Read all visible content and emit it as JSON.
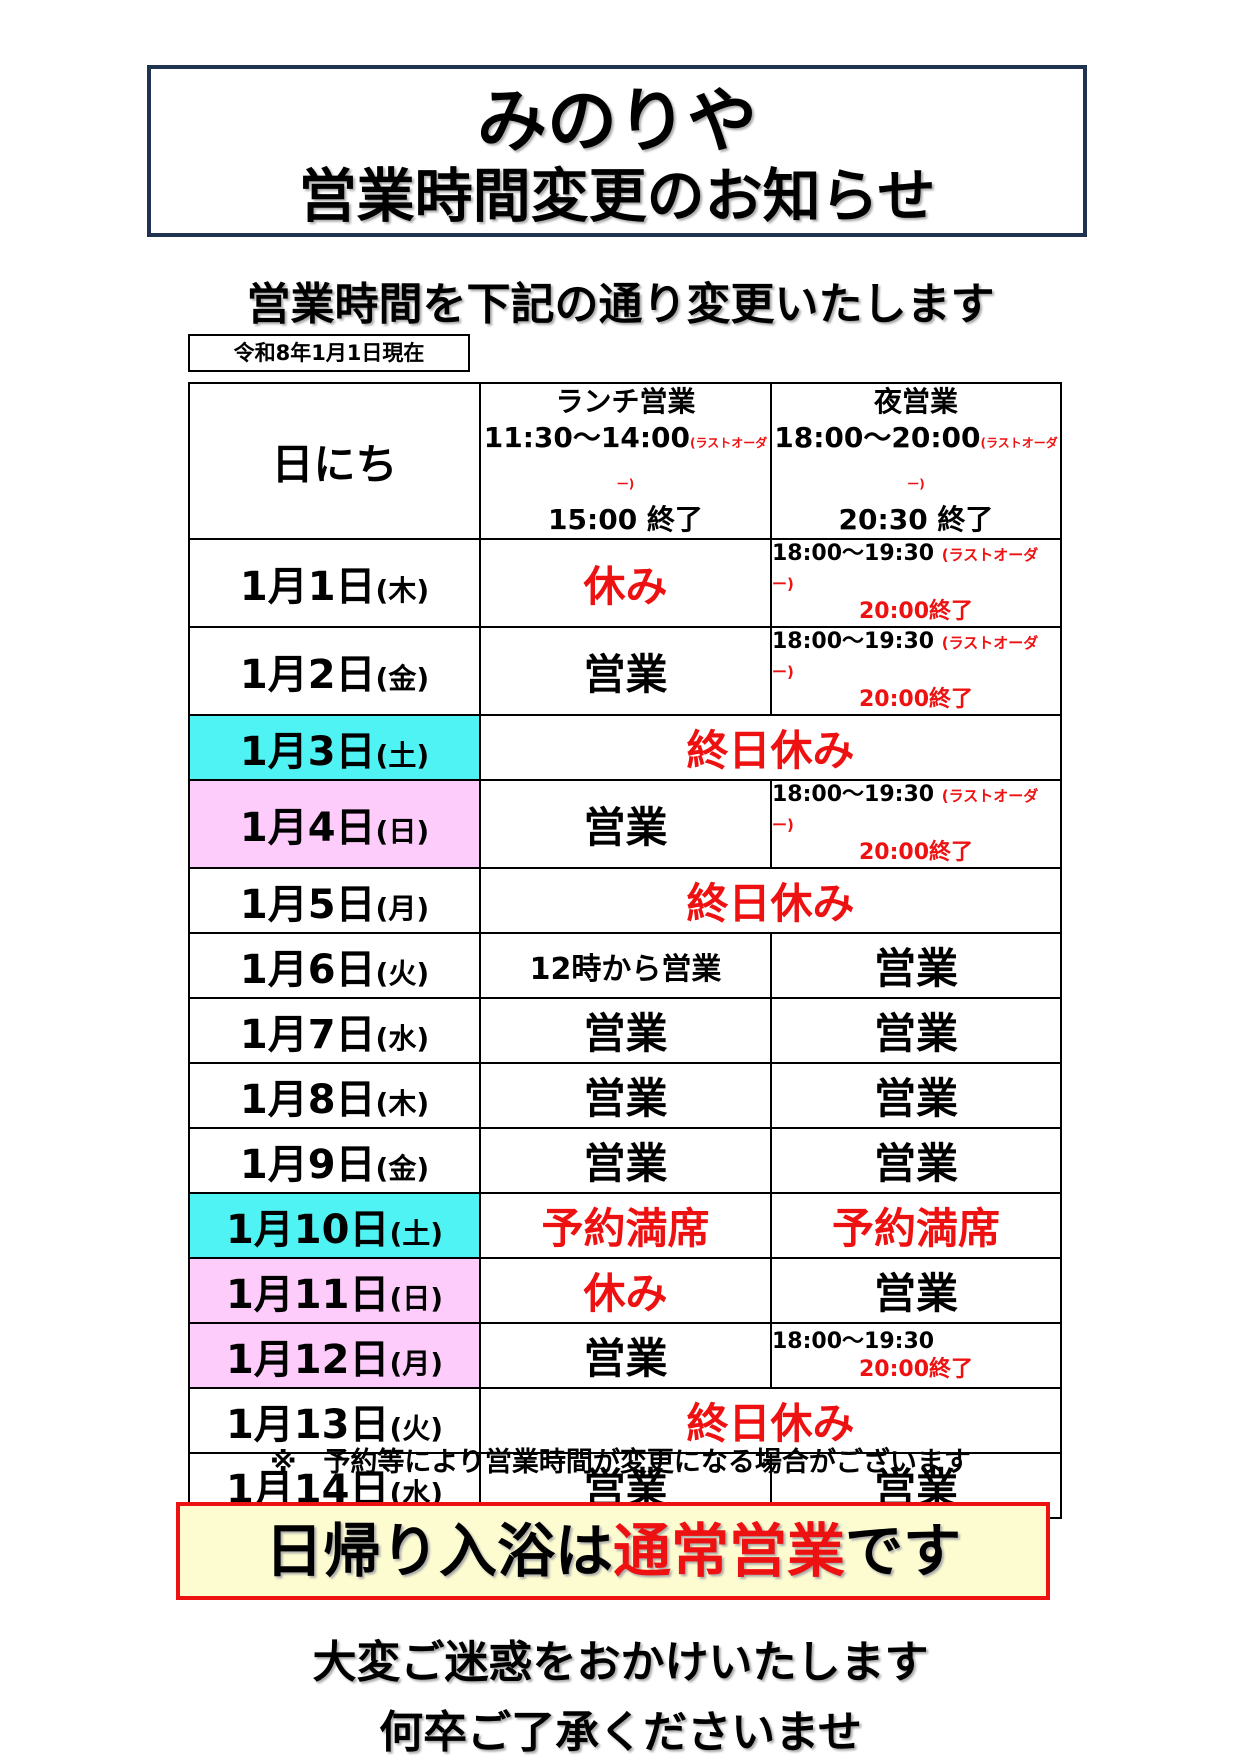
{
  "title": {
    "shop": "みのりや",
    "notice": "営業時間変更のお知らせ"
  },
  "subtitle": "営業時間を下記の通り変更いたします",
  "as_of": "令和8年1月1日現在",
  "table": {
    "header": {
      "date": "日にち",
      "lunch": {
        "label": "ランチ営業",
        "hours": "11:30～14:00",
        "last_order": "(ラストオーダー)",
        "end": "15:00 終了"
      },
      "dinner": {
        "label": "夜営業",
        "hours": "18:00～20:00",
        "last_order": "(ラストオーダー)",
        "end": "20:30 終了"
      }
    },
    "rows": [
      {
        "date": "1月1日",
        "dow": "(木)",
        "lunch": "休み",
        "dinner": "18:00～19:30",
        "dinner_lo": "(ラストオーダー)",
        "dinner_end": "20:00終了"
      },
      {
        "date": "1月2日",
        "dow": "(金)",
        "lunch": "営業",
        "dinner": "18:00～19:30",
        "dinner_lo": "(ラストオーダー)",
        "dinner_end": "20:00終了"
      },
      {
        "date": "1月3日",
        "dow": "(土)",
        "all": "終日休み"
      },
      {
        "date": "1月4日",
        "dow": "(日)",
        "lunch": "営業",
        "dinner": "18:00～19:30",
        "dinner_lo": "(ラストオーダー)",
        "dinner_end": "20:00終了"
      },
      {
        "date": "1月5日",
        "dow": "(月)",
        "all": "終日休み"
      },
      {
        "date": "1月6日",
        "dow": "(火)",
        "lunch": "12時から営業",
        "dinner": "営業"
      },
      {
        "date": "1月7日",
        "dow": "(水)",
        "lunch": "営業",
        "dinner": "営業"
      },
      {
        "date": "1月8日",
        "dow": "(木)",
        "lunch": "営業",
        "dinner": "営業"
      },
      {
        "date": "1月9日",
        "dow": "(金)",
        "lunch": "営業",
        "dinner": "営業"
      },
      {
        "date": "1月10日",
        "dow": "(土)",
        "lunch": "予約満席",
        "dinner": "予約満席"
      },
      {
        "date": "1月11日",
        "dow": "(日)",
        "lunch": "休み",
        "dinner": "営業"
      },
      {
        "date": "1月12日",
        "dow": "(月)",
        "lunch": "営業",
        "dinner": "18:00～19:30",
        "dinner_end": "20:00終了"
      },
      {
        "date": "1月13日",
        "dow": "(火)",
        "all": "終日休み"
      },
      {
        "date": "1月14日",
        "dow": "(水)",
        "lunch": "営業",
        "dinner": "営業"
      }
    ]
  },
  "note": "※　予約等により営業時間が変更になる場合がございます",
  "bath": {
    "pre": "日帰り入浴は",
    "highlight": "通常営業",
    "post": "です"
  },
  "closing": [
    "大変ご迷惑をおかけいたします",
    "何卒ご了承くださいませ"
  ],
  "colors": {
    "red": "#ee1111",
    "saturday": "#4ff3f3",
    "sunday": "#fdccfa",
    "title_border": "#1f3350",
    "bath_bg": "#fdfbd0"
  }
}
